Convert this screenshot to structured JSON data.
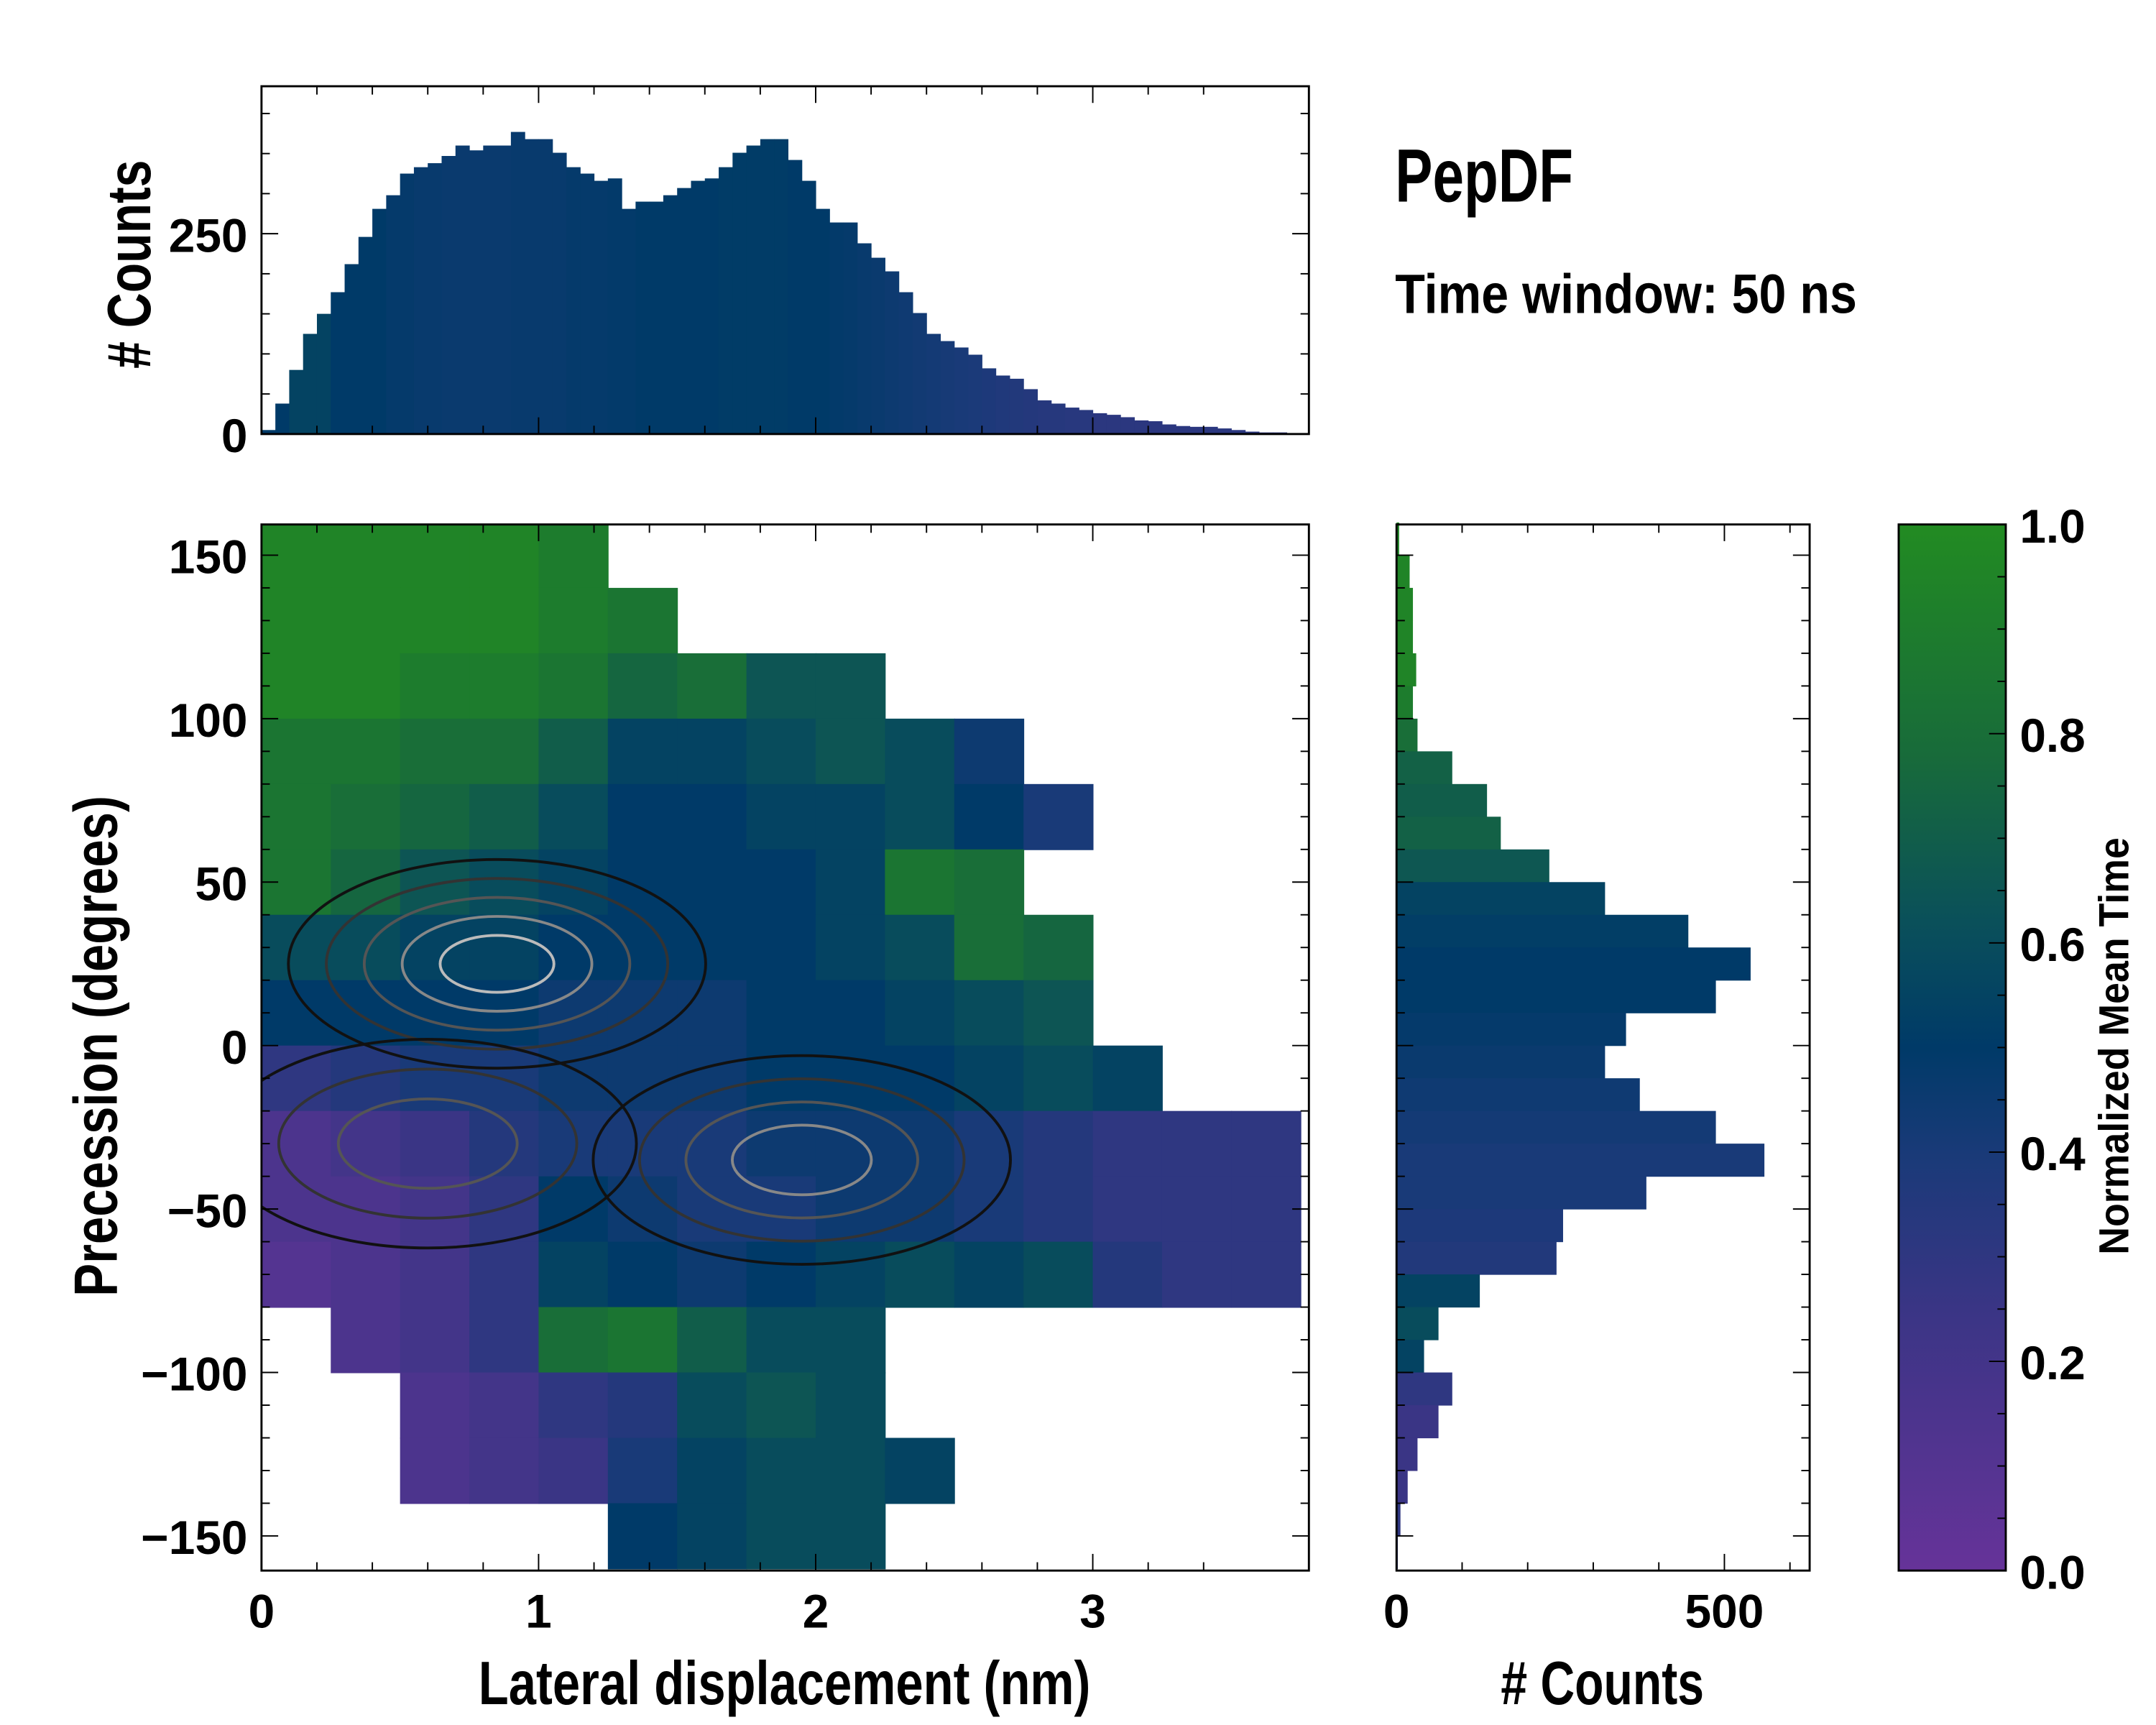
{
  "chart_data": [
    {
      "id": "top-marginal",
      "type": "bar",
      "title": "",
      "xlabel": "",
      "ylabel": "# Counts",
      "xlim": [
        0,
        3.78
      ],
      "ylim": [
        0,
        434
      ],
      "bin_width": 0.05,
      "x": [
        0.0,
        0.05,
        0.1,
        0.15,
        0.2,
        0.25,
        0.3,
        0.35,
        0.4,
        0.45,
        0.5,
        0.55,
        0.6,
        0.65,
        0.7,
        0.75,
        0.8,
        0.85,
        0.9,
        0.95,
        1.0,
        1.05,
        1.1,
        1.15,
        1.2,
        1.25,
        1.3,
        1.35,
        1.4,
        1.45,
        1.5,
        1.55,
        1.6,
        1.65,
        1.7,
        1.75,
        1.8,
        1.85,
        1.9,
        1.95,
        2.0,
        2.05,
        2.1,
        2.15,
        2.2,
        2.25,
        2.3,
        2.35,
        2.4,
        2.45,
        2.5,
        2.55,
        2.6,
        2.65,
        2.7,
        2.75,
        2.8,
        2.85,
        2.9,
        2.95,
        3.0,
        3.05,
        3.1,
        3.15,
        3.2,
        3.25,
        3.3,
        3.35,
        3.4,
        3.45,
        3.5,
        3.55,
        3.6,
        3.65,
        3.7
      ],
      "values": [
        5,
        38,
        80,
        125,
        150,
        177,
        212,
        246,
        281,
        298,
        325,
        333,
        338,
        347,
        360,
        354,
        360,
        360,
        377,
        368,
        368,
        351,
        333,
        325,
        316,
        319,
        281,
        290,
        290,
        298,
        307,
        316,
        319,
        333,
        351,
        360,
        368,
        368,
        342,
        316,
        281,
        264,
        264,
        238,
        220,
        203,
        177,
        151,
        125,
        116,
        108,
        99,
        82,
        73,
        69,
        56,
        42,
        38,
        33,
        30,
        26,
        24,
        21,
        17,
        16,
        12,
        10,
        9,
        9,
        7,
        5,
        3,
        2,
        2,
        0
      ],
      "mean_time": [
        0.5,
        0.5,
        0.55,
        0.55,
        0.55,
        0.5,
        0.5,
        0.5,
        0.5,
        0.48,
        0.48,
        0.47,
        0.47,
        0.46,
        0.46,
        0.46,
        0.46,
        0.46,
        0.47,
        0.47,
        0.47,
        0.47,
        0.48,
        0.48,
        0.48,
        0.49,
        0.49,
        0.5,
        0.5,
        0.5,
        0.5,
        0.5,
        0.5,
        0.51,
        0.51,
        0.51,
        0.51,
        0.51,
        0.5,
        0.5,
        0.5,
        0.49,
        0.48,
        0.47,
        0.46,
        0.45,
        0.44,
        0.43,
        0.42,
        0.41,
        0.4,
        0.39,
        0.38,
        0.37,
        0.36,
        0.35,
        0.34,
        0.34,
        0.33,
        0.33,
        0.32,
        0.32,
        0.32,
        0.32,
        0.32,
        0.32,
        0.32,
        0.32,
        0.32,
        0.32,
        0.32,
        0.32,
        0.32,
        0.32,
        0.32
      ],
      "yticks": [
        0,
        250
      ],
      "ytick_labels": [
        "0",
        "250"
      ]
    },
    {
      "id": "main-2d",
      "type": "heatmap",
      "xlabel": "Lateral displacement (nm)",
      "ylabel": "Precession (degrees)",
      "xlim": [
        0,
        3.78
      ],
      "ylim": [
        -160.6,
        159.4
      ],
      "xticks": [
        0,
        1,
        2,
        3
      ],
      "xtick_labels": [
        "0",
        "1",
        "2",
        "3"
      ],
      "yticks": [
        150,
        100,
        50,
        0,
        -50,
        -100,
        -150
      ],
      "ytick_labels": [
        "150",
        "100",
        "50",
        "0",
        "−50",
        "−100",
        "−150"
      ],
      "x_bin_width": 0.25,
      "y_bin_width": 20,
      "x_centers": [
        0.125,
        0.375,
        0.625,
        0.875,
        1.125,
        1.375,
        1.625,
        1.875,
        2.125,
        2.375,
        2.625,
        2.875,
        3.125,
        3.375,
        3.625
      ],
      "y_centers": [
        150,
        130,
        110,
        90,
        70,
        50,
        30,
        10,
        -10,
        -30,
        -50,
        -70,
        -90,
        -110,
        -130,
        -150
      ],
      "values": [
        [
          0.95,
          0.95,
          0.95,
          0.95,
          0.9,
          null,
          null,
          null,
          null,
          null,
          null,
          null,
          null,
          null,
          null
        ],
        [
          0.95,
          0.95,
          0.95,
          0.95,
          0.9,
          0.85,
          null,
          null,
          null,
          null,
          null,
          null,
          null,
          null,
          null
        ],
        [
          0.95,
          0.95,
          0.9,
          0.9,
          0.85,
          0.75,
          0.8,
          0.65,
          0.65,
          null,
          null,
          null,
          null,
          null,
          null
        ],
        [
          0.85,
          0.85,
          0.8,
          0.8,
          0.7,
          0.55,
          0.55,
          0.6,
          0.65,
          0.6,
          0.45,
          null,
          null,
          null,
          null
        ],
        [
          0.85,
          0.8,
          0.75,
          0.7,
          0.6,
          0.5,
          0.5,
          0.55,
          0.55,
          0.6,
          0.5,
          0.4,
          null,
          null,
          null
        ],
        [
          0.85,
          0.75,
          0.65,
          0.6,
          0.55,
          0.5,
          0.5,
          0.5,
          0.55,
          0.85,
          0.8,
          null,
          null,
          null,
          null
        ],
        [
          0.6,
          0.6,
          0.55,
          0.55,
          0.5,
          0.5,
          0.5,
          0.5,
          0.55,
          0.6,
          0.8,
          0.75,
          null,
          null,
          null
        ],
        [
          0.5,
          0.5,
          0.5,
          0.5,
          0.45,
          0.45,
          0.45,
          0.5,
          0.5,
          0.55,
          0.6,
          0.65,
          null,
          null,
          null
        ],
        [
          0.3,
          0.35,
          0.4,
          0.4,
          0.45,
          0.45,
          0.45,
          0.5,
          0.5,
          0.5,
          0.55,
          0.6,
          0.55,
          null,
          null
        ],
        [
          0.15,
          0.2,
          0.25,
          0.35,
          0.4,
          0.4,
          0.4,
          0.45,
          0.45,
          0.45,
          0.4,
          0.35,
          0.3,
          0.3,
          0.3
        ],
        [
          0.15,
          0.15,
          0.2,
          0.3,
          0.5,
          0.45,
          0.4,
          0.4,
          0.45,
          0.45,
          0.4,
          0.35,
          0.3,
          0.3,
          0.3
        ],
        [
          0.1,
          0.15,
          0.2,
          0.3,
          0.55,
          0.5,
          0.45,
          0.5,
          0.55,
          0.6,
          0.55,
          0.6,
          0.35,
          0.3,
          0.3
        ],
        [
          null,
          0.15,
          0.2,
          0.3,
          0.8,
          0.85,
          0.7,
          0.6,
          0.6,
          null,
          null,
          null,
          null,
          null,
          null
        ],
        [
          null,
          null,
          0.15,
          0.2,
          0.3,
          0.35,
          0.6,
          0.65,
          0.6,
          null,
          null,
          null,
          null,
          null,
          null
        ],
        [
          null,
          null,
          0.15,
          0.2,
          0.25,
          0.4,
          0.55,
          0.6,
          0.6,
          0.55,
          null,
          null,
          null,
          null,
          null
        ],
        [
          null,
          null,
          null,
          null,
          null,
          0.5,
          0.55,
          0.6,
          0.6,
          null,
          null,
          null,
          null,
          null,
          null
        ]
      ],
      "density_peaks": [
        {
          "x": 0.85,
          "y": 25,
          "levels": 5
        },
        {
          "x": 1.95,
          "y": -35,
          "levels": 4
        },
        {
          "x": 0.6,
          "y": -30,
          "levels": 3
        }
      ]
    },
    {
      "id": "right-marginal",
      "type": "bar",
      "orientation": "horizontal",
      "xlabel": "# Counts",
      "xlim": [
        0,
        630
      ],
      "ylim": [
        -160.6,
        159.4
      ],
      "xticks": [
        0,
        500
      ],
      "xtick_labels": [
        "0",
        "500"
      ],
      "bin_width": 10,
      "y": [
        155,
        145,
        135,
        125,
        115,
        105,
        95,
        85,
        75,
        65,
        55,
        45,
        35,
        25,
        15,
        5,
        -5,
        -15,
        -25,
        -35,
        -45,
        -55,
        -65,
        -75,
        -85,
        -95,
        -105,
        -115,
        -125,
        -135,
        -145,
        -155
      ],
      "values": [
        4,
        20,
        25,
        25,
        30,
        25,
        32,
        85,
        138,
        159,
        233,
        318,
        445,
        540,
        487,
        350,
        318,
        371,
        487,
        561,
        381,
        254,
        244,
        127,
        64,
        42,
        85,
        64,
        32,
        17,
        6,
        2
      ],
      "mean_time": [
        0.95,
        0.95,
        0.95,
        0.95,
        0.95,
        0.9,
        0.8,
        0.72,
        0.7,
        0.72,
        0.66,
        0.55,
        0.52,
        0.5,
        0.5,
        0.48,
        0.46,
        0.44,
        0.42,
        0.4,
        0.4,
        0.38,
        0.36,
        0.55,
        0.6,
        0.55,
        0.3,
        0.25,
        0.25,
        0.25,
        0.3,
        0.3
      ]
    },
    {
      "id": "colorbar",
      "type": "colorbar",
      "label": "Normalized Mean Time",
      "range": [
        0,
        1
      ],
      "ticks": [
        0,
        0.2,
        0.4,
        0.6,
        0.8,
        1.0
      ],
      "tick_labels": [
        "0.0",
        "0.2",
        "0.4",
        "0.6",
        "0.8",
        "1.0"
      ],
      "colormap": [
        {
          "v": 0.0,
          "color": "#663399"
        },
        {
          "v": 0.25,
          "color": "#3a3585"
        },
        {
          "v": 0.4,
          "color": "#193a78"
        },
        {
          "v": 0.5,
          "color": "#003a68"
        },
        {
          "v": 0.62,
          "color": "#0a505a"
        },
        {
          "v": 0.78,
          "color": "#186b3a"
        },
        {
          "v": 1.0,
          "color": "#228b22"
        }
      ]
    }
  ],
  "annotations": {
    "title": "PepDF",
    "subtitle": "Time window: 50 ns"
  }
}
